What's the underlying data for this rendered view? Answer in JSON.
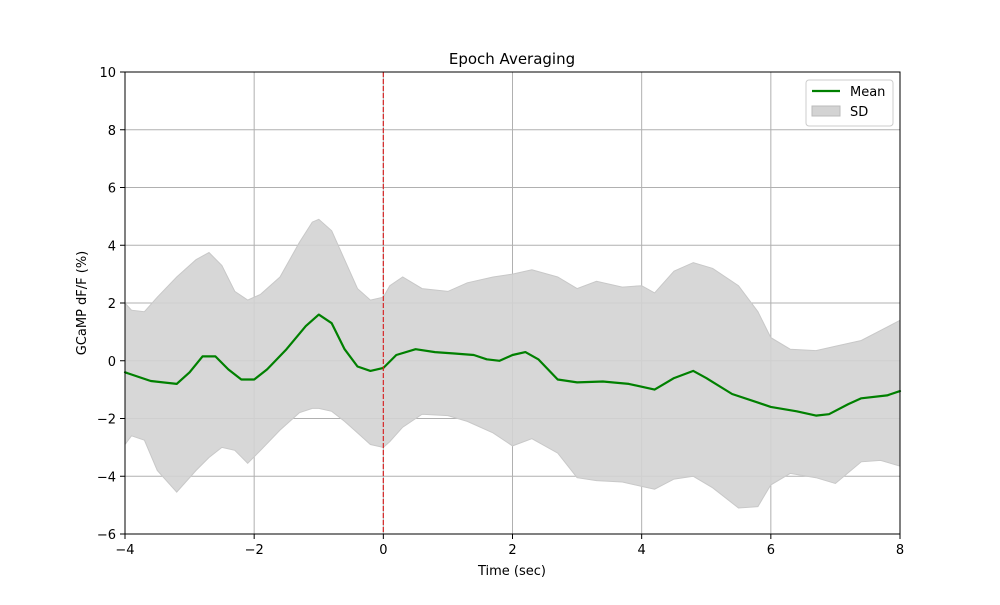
{
  "chart_data": {
    "type": "line",
    "title": "Epoch Averaging",
    "xlabel": "Time (sec)",
    "ylabel": "GCaMP dF/F (%)",
    "xlim": [
      -4,
      8
    ],
    "ylim": [
      -6,
      10
    ],
    "xticks": [
      -4,
      -2,
      0,
      2,
      4,
      6,
      8
    ],
    "yticks": [
      -6,
      -4,
      -2,
      0,
      2,
      4,
      6,
      8,
      10
    ],
    "xtick_labels": [
      "−4",
      "−2",
      "0",
      "2",
      "4",
      "6",
      "8"
    ],
    "ytick_labels": [
      "−6",
      "−4",
      "−2",
      "0",
      "2",
      "4",
      "6",
      "8",
      "10"
    ],
    "grid": true,
    "legend_position": "top-right",
    "event_line": {
      "x": 0,
      "color": "#d62728",
      "style": "dashed"
    },
    "colors": {
      "mean": "#008000",
      "sd_fill": "#d3d3d3",
      "grid": "#b0b0b0"
    },
    "series": [
      {
        "name": "Mean",
        "kind": "line",
        "x": [
          -4.0,
          -3.6,
          -3.2,
          -3.0,
          -2.8,
          -2.6,
          -2.4,
          -2.2,
          -2.0,
          -1.8,
          -1.5,
          -1.2,
          -1.0,
          -0.8,
          -0.6,
          -0.4,
          -0.2,
          0.0,
          0.2,
          0.5,
          0.8,
          1.1,
          1.4,
          1.6,
          1.8,
          2.0,
          2.2,
          2.4,
          2.7,
          3.0,
          3.4,
          3.8,
          4.2,
          4.5,
          4.8,
          5.0,
          5.4,
          5.8,
          6.0,
          6.4,
          6.7,
          6.9,
          7.2,
          7.4,
          7.8,
          8.0
        ],
        "y": [
          -0.4,
          -0.7,
          -0.8,
          -0.4,
          0.15,
          0.15,
          -0.3,
          -0.65,
          -0.65,
          -0.3,
          0.4,
          1.2,
          1.6,
          1.3,
          0.4,
          -0.2,
          -0.35,
          -0.25,
          0.2,
          0.4,
          0.3,
          0.25,
          0.2,
          0.05,
          0.0,
          0.2,
          0.3,
          0.05,
          -0.65,
          -0.75,
          -0.72,
          -0.8,
          -1.0,
          -0.6,
          -0.35,
          -0.6,
          -1.15,
          -1.45,
          -1.6,
          -1.75,
          -1.9,
          -1.85,
          -1.5,
          -1.3,
          -1.2,
          -1.05
        ]
      },
      {
        "name": "SD",
        "kind": "band",
        "x": [
          -4.0,
          -3.9,
          -3.7,
          -3.5,
          -3.2,
          -2.9,
          -2.7,
          -2.5,
          -2.3,
          -2.1,
          -1.9,
          -1.6,
          -1.3,
          -1.1,
          -1.0,
          -0.8,
          -0.6,
          -0.4,
          -0.2,
          0.0,
          0.1,
          0.3,
          0.6,
          1.0,
          1.3,
          1.7,
          2.0,
          2.3,
          2.7,
          3.0,
          3.3,
          3.7,
          4.0,
          4.2,
          4.5,
          4.8,
          5.1,
          5.5,
          5.8,
          6.0,
          6.3,
          6.7,
          7.0,
          7.4,
          7.7,
          8.0
        ],
        "upper": [
          2.0,
          1.75,
          1.7,
          2.2,
          2.9,
          3.5,
          3.75,
          3.3,
          2.4,
          2.1,
          2.3,
          2.9,
          4.1,
          4.8,
          4.9,
          4.5,
          3.5,
          2.5,
          2.1,
          2.2,
          2.6,
          2.9,
          2.5,
          2.4,
          2.7,
          2.9,
          3.0,
          3.15,
          2.9,
          2.5,
          2.75,
          2.55,
          2.6,
          2.35,
          3.1,
          3.4,
          3.2,
          2.6,
          1.7,
          0.8,
          0.4,
          0.35,
          0.5,
          0.7,
          1.05,
          1.4
        ],
        "lower": [
          -2.9,
          -2.6,
          -2.75,
          -3.8,
          -4.55,
          -3.8,
          -3.35,
          -3.0,
          -3.1,
          -3.55,
          -3.1,
          -2.4,
          -1.8,
          -1.65,
          -1.65,
          -1.75,
          -2.1,
          -2.5,
          -2.9,
          -3.0,
          -2.8,
          -2.3,
          -1.85,
          -1.9,
          -2.1,
          -2.5,
          -2.95,
          -2.7,
          -3.2,
          -4.05,
          -4.15,
          -4.2,
          -4.35,
          -4.45,
          -4.1,
          -4.0,
          -4.4,
          -5.1,
          -5.05,
          -4.3,
          -3.9,
          -4.05,
          -4.25,
          -3.5,
          -3.45,
          -3.65
        ]
      }
    ]
  }
}
